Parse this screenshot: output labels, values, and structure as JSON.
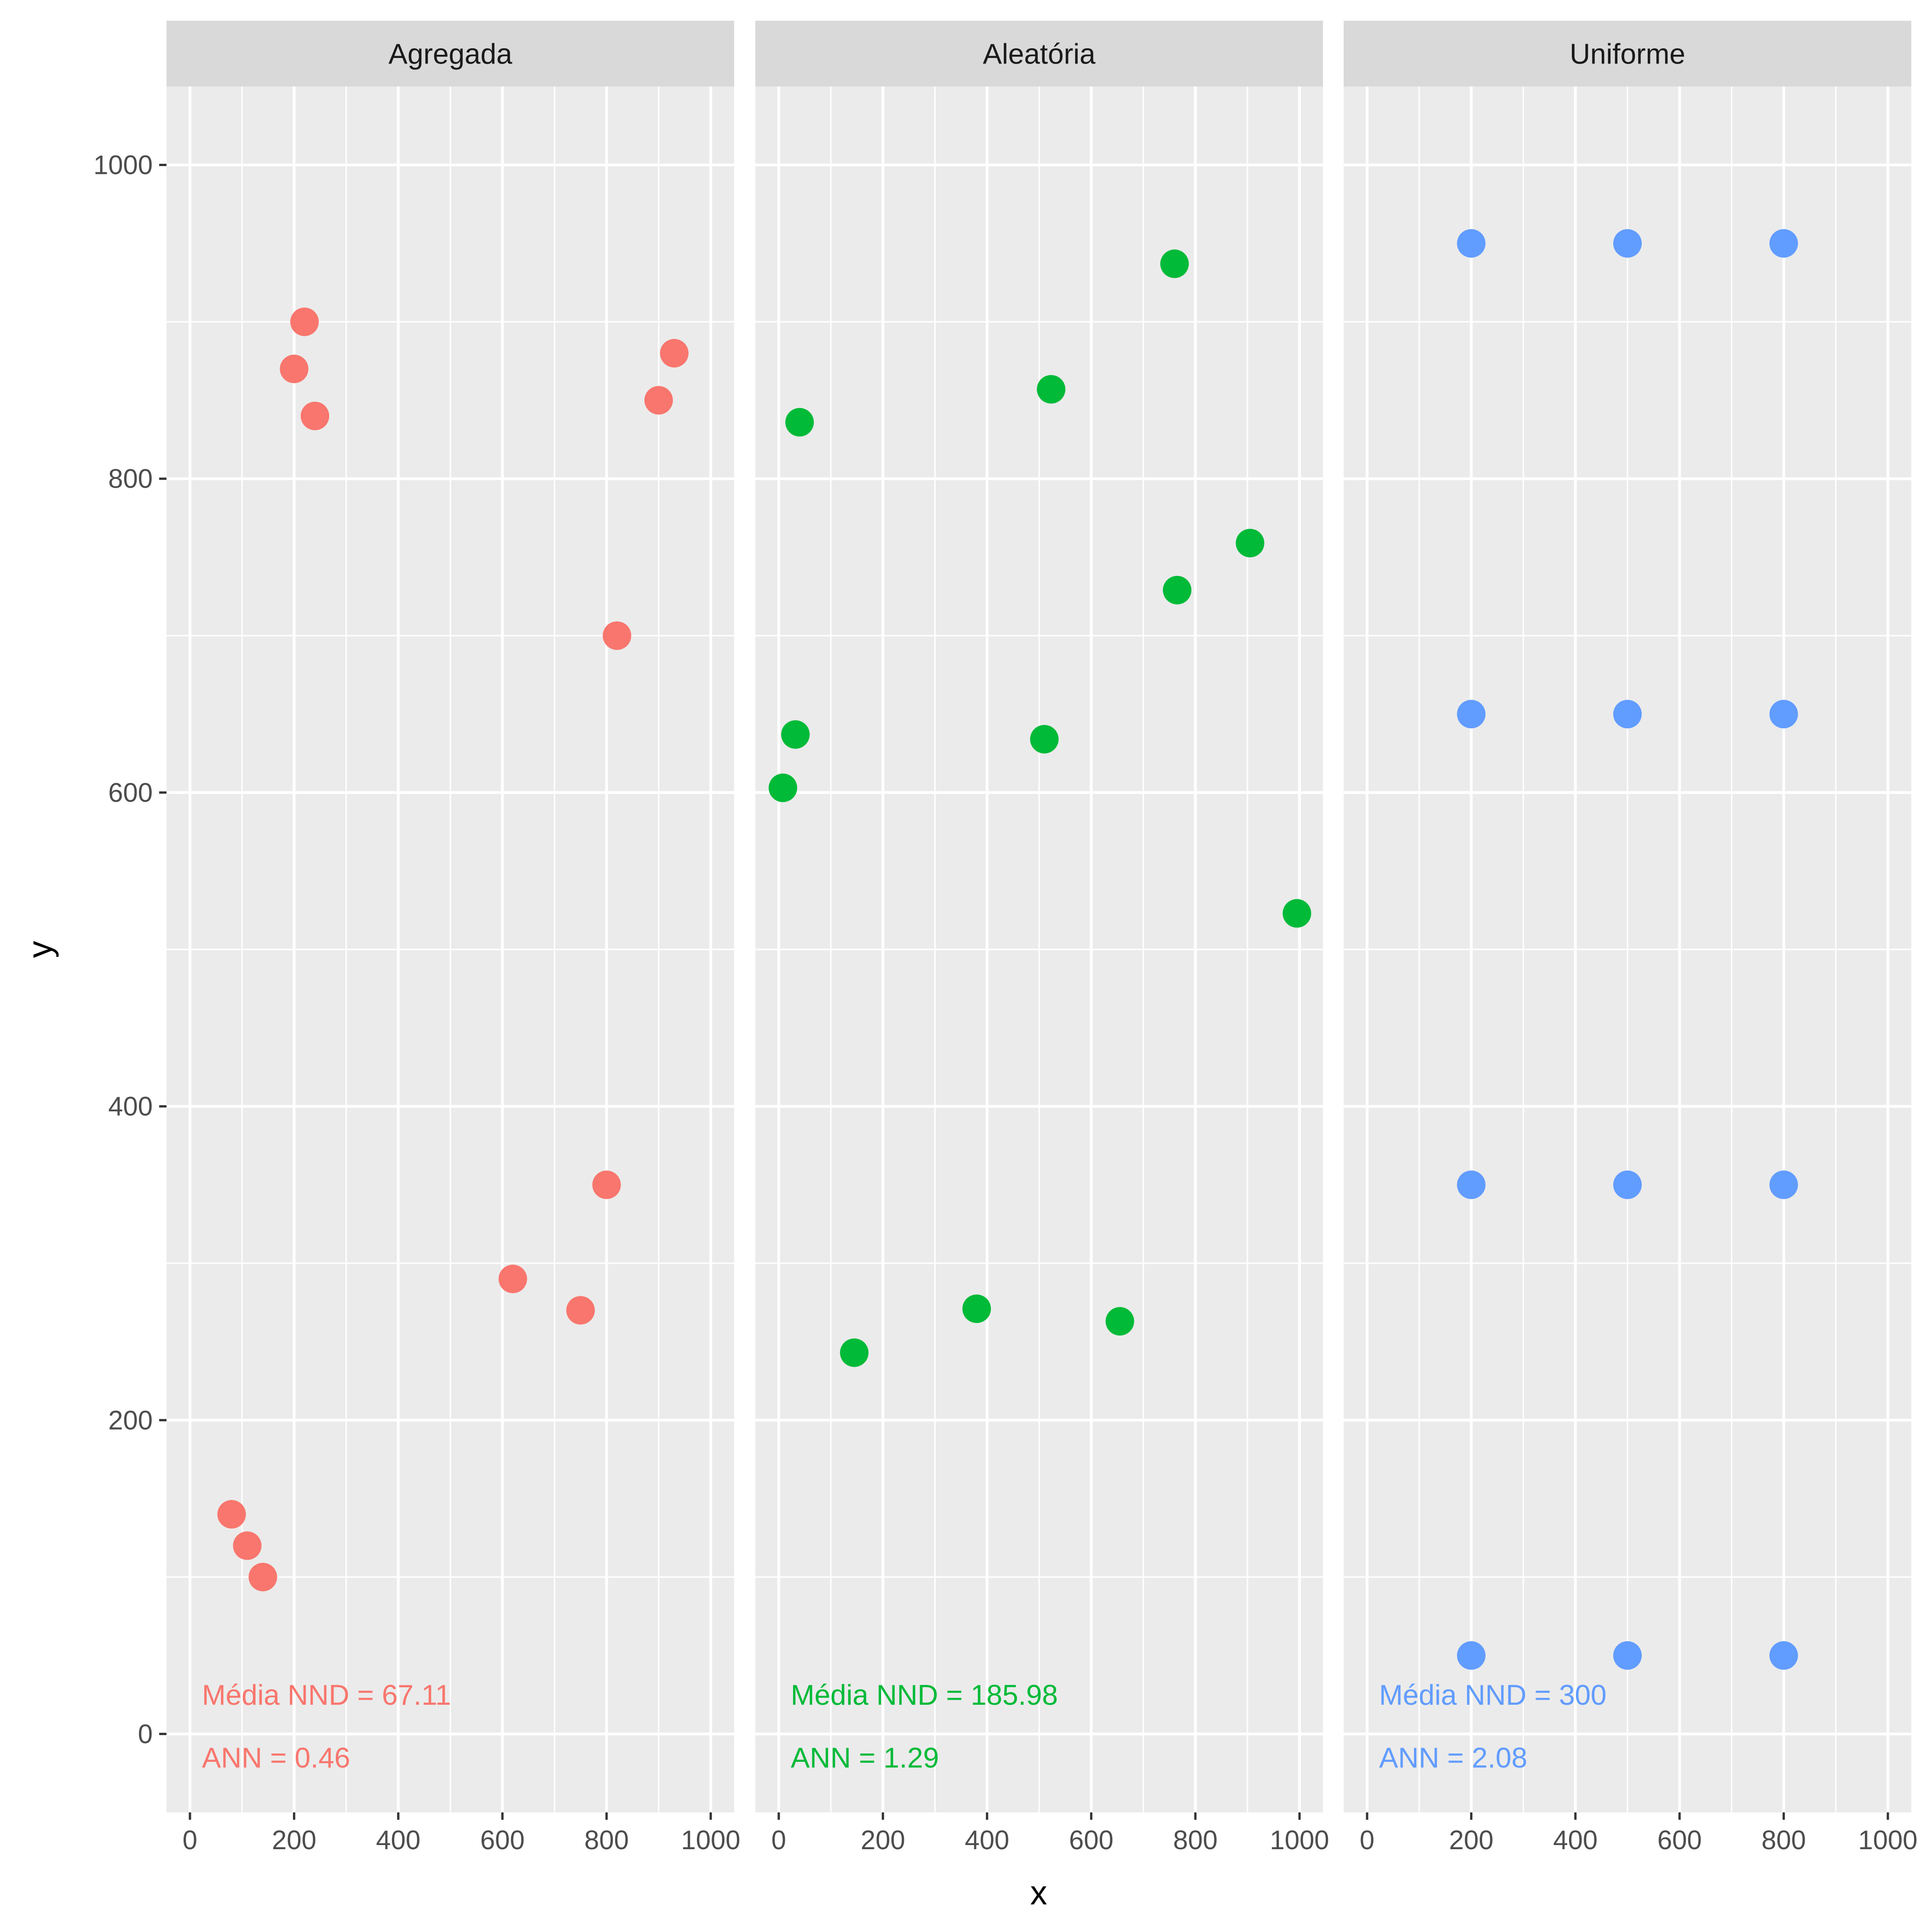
{
  "chart_data": {
    "type": "scatter",
    "facet_by": "pattern",
    "xlabel": "x",
    "ylabel": "y",
    "xlim": [
      -45,
      1045
    ],
    "ylim": [
      -50,
      1050
    ],
    "x_ticks": [
      0,
      200,
      400,
      600,
      800,
      1000
    ],
    "y_ticks": [
      0,
      200,
      400,
      600,
      800,
      1000
    ],
    "grid": true,
    "legend": "none",
    "panels": [
      {
        "name": "Agregada",
        "color": "#F8766D",
        "annotation_nnd": "Média NND =  67.11",
        "annotation_ann": "ANN =  0.46",
        "points": [
          {
            "x": 220,
            "y": 900
          },
          {
            "x": 200,
            "y": 870
          },
          {
            "x": 240,
            "y": 840
          },
          {
            "x": 930,
            "y": 880
          },
          {
            "x": 900,
            "y": 850
          },
          {
            "x": 820,
            "y": 700
          },
          {
            "x": 800,
            "y": 350
          },
          {
            "x": 620,
            "y": 290
          },
          {
            "x": 750,
            "y": 270
          },
          {
            "x": 80,
            "y": 140
          },
          {
            "x": 110,
            "y": 120
          },
          {
            "x": 140,
            "y": 100
          }
        ]
      },
      {
        "name": "Aleatória",
        "color": "#00BA38",
        "annotation_nnd": "Média NND =  185.98",
        "annotation_ann": "ANN =  1.29",
        "points": [
          {
            "x": 760,
            "y": 937
          },
          {
            "x": 523,
            "y": 857
          },
          {
            "x": 40,
            "y": 836
          },
          {
            "x": 905,
            "y": 759
          },
          {
            "x": 765,
            "y": 729
          },
          {
            "x": 32,
            "y": 637
          },
          {
            "x": 510,
            "y": 634
          },
          {
            "x": 8,
            "y": 603
          },
          {
            "x": 995,
            "y": 523
          },
          {
            "x": 380,
            "y": 271
          },
          {
            "x": 655,
            "y": 263
          },
          {
            "x": 145,
            "y": 243
          }
        ]
      },
      {
        "name": "Uniforme",
        "color": "#619CFF",
        "annotation_nnd": "Média NND =  300",
        "annotation_ann": "ANN =  2.08",
        "points": [
          {
            "x": 200,
            "y": 950
          },
          {
            "x": 500,
            "y": 950
          },
          {
            "x": 800,
            "y": 950
          },
          {
            "x": 200,
            "y": 650
          },
          {
            "x": 500,
            "y": 650
          },
          {
            "x": 800,
            "y": 650
          },
          {
            "x": 200,
            "y": 350
          },
          {
            "x": 500,
            "y": 350
          },
          {
            "x": 800,
            "y": 350
          },
          {
            "x": 200,
            "y": 50
          },
          {
            "x": 500,
            "y": 50
          },
          {
            "x": 800,
            "y": 50
          }
        ]
      }
    ]
  }
}
